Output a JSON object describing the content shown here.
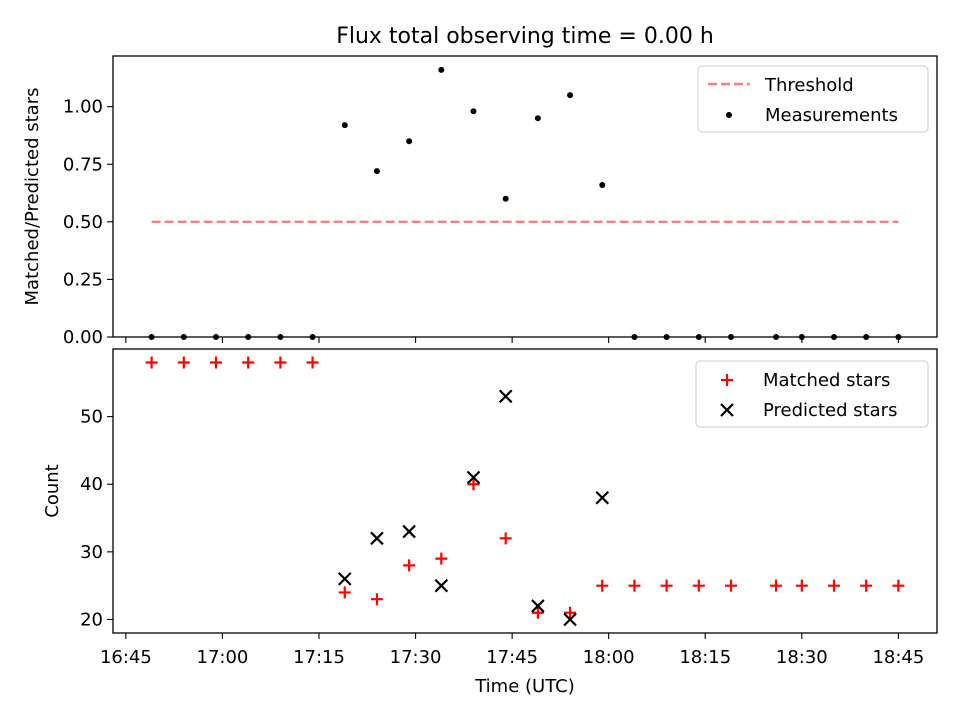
{
  "title": "Flux total observing time = 0.00 h",
  "colors": {
    "threshold": "#ff7f7f",
    "measurement": "#000000",
    "matched": "#ff0000",
    "predicted": "#000000"
  },
  "x_ticks": [
    "16:45",
    "17:00",
    "17:15",
    "17:30",
    "17:45",
    "18:00",
    "18:15",
    "18:30",
    "18:45"
  ],
  "chart_data": [
    {
      "type": "scatter",
      "ylabel": "Matched/Predicted stars",
      "ylim": [
        0,
        1.22
      ],
      "yticks": [
        "0.00",
        "0.25",
        "0.50",
        "0.75",
        "1.00"
      ],
      "legend_placement": "top-right",
      "threshold": {
        "name": "Threshold",
        "value": 0.5,
        "x_start": "16:49",
        "x_end": "18:45"
      },
      "series": [
        {
          "name": "Measurements",
          "x": [
            "16:49",
            "16:54",
            "16:59",
            "17:04",
            "17:09",
            "17:14",
            "17:19",
            "17:24",
            "17:29",
            "17:34",
            "17:39",
            "17:44",
            "17:49",
            "17:54",
            "17:59",
            "18:04",
            "18:09",
            "18:14",
            "18:19",
            "18:26",
            "18:30",
            "18:35",
            "18:40",
            "18:45"
          ],
          "y": [
            0,
            0,
            0,
            0,
            0,
            0,
            0.92,
            0.72,
            0.85,
            1.16,
            0.98,
            0.6,
            0.95,
            1.05,
            0.66,
            0,
            0,
            0,
            0,
            0,
            0,
            0,
            0,
            0
          ]
        }
      ]
    },
    {
      "type": "scatter",
      "xlabel": "Time (UTC)",
      "ylabel": "Count",
      "ylim": [
        18,
        60
      ],
      "yticks": [
        "20",
        "30",
        "40",
        "50"
      ],
      "legend_placement": "top-right",
      "series": [
        {
          "name": "Matched stars",
          "marker": "+",
          "x": [
            "16:49",
            "16:54",
            "16:59",
            "17:04",
            "17:09",
            "17:14",
            "17:19",
            "17:24",
            "17:29",
            "17:34",
            "17:39",
            "17:44",
            "17:49",
            "17:54",
            "17:59",
            "18:04",
            "18:09",
            "18:14",
            "18:19",
            "18:26",
            "18:30",
            "18:35",
            "18:40",
            "18:45"
          ],
          "y": [
            58,
            58,
            58,
            58,
            58,
            58,
            24,
            23,
            28,
            29,
            40,
            32,
            21,
            21,
            25,
            25,
            25,
            25,
            25,
            25,
            25,
            25,
            25,
            25
          ]
        },
        {
          "name": "Predicted stars",
          "marker": "x",
          "x": [
            "17:19",
            "17:24",
            "17:29",
            "17:34",
            "17:39",
            "17:44",
            "17:49",
            "17:54",
            "17:59"
          ],
          "y": [
            26,
            32,
            33,
            25,
            41,
            53,
            22,
            20,
            38
          ]
        }
      ]
    }
  ]
}
